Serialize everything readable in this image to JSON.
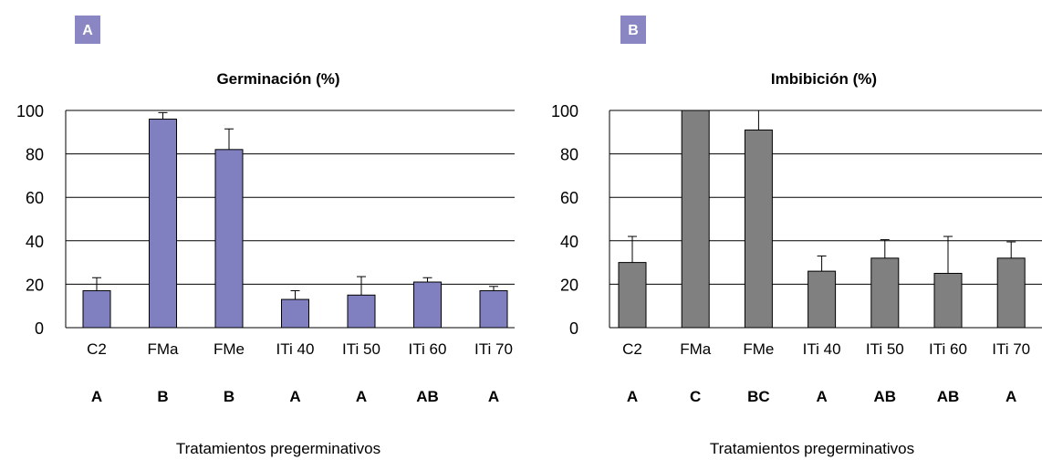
{
  "chart_data": [
    {
      "type": "bar",
      "panel_label": "A",
      "title": "Germinación (%)",
      "xlabel": "Tratamientos pregerminativos",
      "ylabel": "",
      "categories": [
        "C2",
        "FMa",
        "FMe",
        "ITi 40",
        "ITi 50",
        "ITi 60",
        "ITi 70"
      ],
      "group_letters": [
        "A",
        "B",
        "B",
        "A",
        "A",
        "AB",
        "A"
      ],
      "values": [
        17,
        96,
        82,
        13,
        15,
        21,
        17
      ],
      "error_plus": [
        6,
        3,
        9.5,
        4,
        8.5,
        2,
        2
      ],
      "ylim": [
        0,
        100
      ],
      "yticks": [
        0,
        20,
        40,
        60,
        80,
        100
      ],
      "grid": true,
      "bar_color": "#8080c0",
      "panel_label_color": "#8a86c4"
    },
    {
      "type": "bar",
      "panel_label": "B",
      "title": "Imbibición (%)",
      "xlabel": "Tratamientos pregerminativos",
      "ylabel": "",
      "categories": [
        "C2",
        "FMa",
        "FMe",
        "ITi 40",
        "ITi 50",
        "ITi 60",
        "ITi 70"
      ],
      "group_letters": [
        "A",
        "C",
        "BC",
        "A",
        "AB",
        "AB",
        "A"
      ],
      "values": [
        30,
        100,
        91,
        26,
        32,
        25,
        32
      ],
      "error_plus": [
        12,
        0,
        9,
        7,
        8.5,
        17,
        7.5
      ],
      "ylim": [
        0,
        100
      ],
      "yticks": [
        0,
        20,
        40,
        60,
        80,
        100
      ],
      "grid": true,
      "bar_color": "#808080",
      "panel_label_color": "#8a86c4"
    }
  ]
}
